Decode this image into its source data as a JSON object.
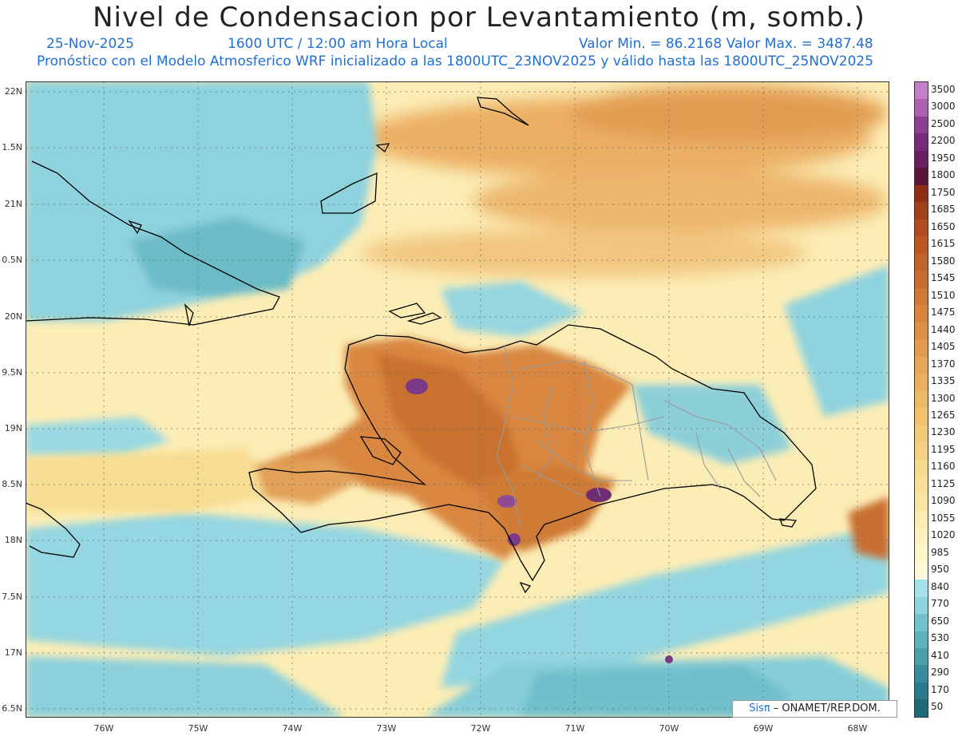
{
  "title": "Nivel de Condensacion por Levantamiento (m, somb.)",
  "header": {
    "date": "25-Nov-2025",
    "time": "1600 UTC / 12:00 am Hora Local",
    "min_max": "Valor Min. = 86.2168  Valor Max. = 3487.48",
    "description": "Pronóstico con el Modelo Atmosferico WRF inicializado a las 1800UTC_23NOV2025 y válido hasta las  1800UTC_25NOV2025"
  },
  "axes": {
    "lat_labels": [
      "22N",
      "1.5N",
      "21N",
      "0.5N",
      "20N",
      "9.5N",
      "19N",
      "8.5N",
      "18N",
      "7.5N",
      "17N",
      "6.5N"
    ],
    "lon_labels": [
      "76W",
      "75W",
      "74W",
      "73W",
      "72W",
      "71W",
      "70W",
      "69W",
      "68W"
    ]
  },
  "legend": {
    "labels": [
      "3500",
      "3000",
      "2500",
      "2200",
      "1950",
      "1800",
      "1750",
      "1685",
      "1650",
      "1615",
      "1580",
      "1545",
      "1510",
      "1475",
      "1440",
      "1405",
      "1370",
      "1335",
      "1300",
      "1265",
      "1230",
      "1195",
      "1160",
      "1125",
      "1090",
      "1055",
      "1020",
      "985",
      "950",
      "840",
      "770",
      "650",
      "530",
      "410",
      "290",
      "170",
      "50"
    ],
    "colors": [
      "#c480c6",
      "#ad5fb0",
      "#8f3f93",
      "#7a2a7a",
      "#6a1f63",
      "#5a1538",
      "#8e2e14",
      "#a1401a",
      "#b24c1f",
      "#bd5620",
      "#c26129",
      "#c96c2f",
      "#d07836",
      "#d8853d",
      "#de9144",
      "#e39c4c",
      "#e7a753",
      "#ebb05b",
      "#eeb963",
      "#f1c26d",
      "#f3ca77",
      "#f5d283",
      "#f7da8e",
      "#f8e09a",
      "#f9e6a6",
      "#fbecb2",
      "#fcf1bf",
      "#fdf5cc",
      "#fef9d9",
      "#a6e2ea",
      "#8dd4dc",
      "#72c2cc",
      "#5eb0bc",
      "#4a9eac",
      "#3a8c9c",
      "#2b7a8b",
      "#1f6a7a"
    ]
  },
  "credit": {
    "brand": "Sisπ",
    "text": " – ONAMET/REP.DOM."
  },
  "colors": {
    "sea_blue": "#8fd3df",
    "land_yellow": "#fbe9a8",
    "orange": "#dc8a3c",
    "purple": "#7b3a86",
    "coast": "#000000",
    "provinces": "#9a9a9a"
  }
}
